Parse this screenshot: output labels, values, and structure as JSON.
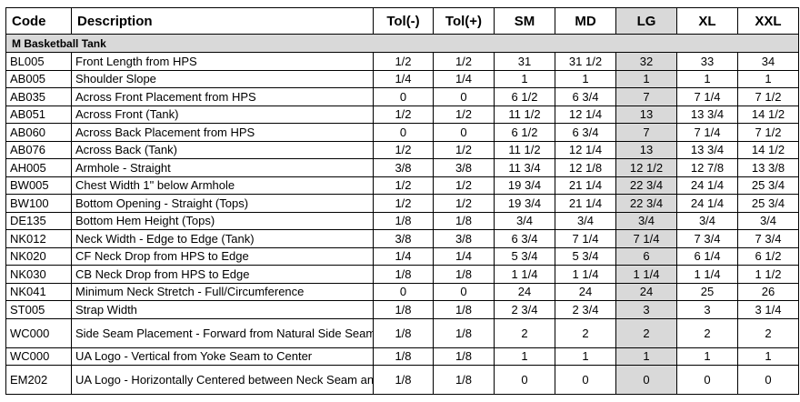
{
  "headers": {
    "code": "Code",
    "description": "Description",
    "tol_minus": "Tol(-)",
    "tol_plus": "Tol(+)",
    "sizes": [
      "SM",
      "MD",
      "LG",
      "XL",
      "XXL"
    ]
  },
  "section_title": "M Basketball Tank",
  "rows": [
    {
      "code": "BL005",
      "desc": "Front Length from HPS",
      "tm": "1/2",
      "tp": "1/2",
      "v": [
        "31",
        "31 1/2",
        "32",
        "33",
        "34"
      ]
    },
    {
      "code": "AB005",
      "desc": "Shoulder Slope",
      "tm": "1/4",
      "tp": "1/4",
      "v": [
        "1",
        "1",
        "1",
        "1",
        "1"
      ]
    },
    {
      "code": "AB035",
      "desc": "Across Front Placement from HPS",
      "tm": "0",
      "tp": "0",
      "v": [
        "6 1/2",
        "6 3/4",
        "7",
        "7 1/4",
        "7 1/2"
      ]
    },
    {
      "code": "AB051",
      "desc": "Across Front (Tank)",
      "tm": "1/2",
      "tp": "1/2",
      "v": [
        "11 1/2",
        "12 1/4",
        "13",
        "13 3/4",
        "14 1/2"
      ]
    },
    {
      "code": "AB060",
      "desc": "Across Back Placement from HPS",
      "tm": "0",
      "tp": "0",
      "v": [
        "6 1/2",
        "6 3/4",
        "7",
        "7 1/4",
        "7 1/2"
      ]
    },
    {
      "code": "AB076",
      "desc": "Across Back (Tank)",
      "tm": "1/2",
      "tp": "1/2",
      "v": [
        "11 1/2",
        "12 1/4",
        "13",
        "13 3/4",
        "14 1/2"
      ]
    },
    {
      "code": "AH005",
      "desc": "Armhole - Straight",
      "tm": "3/8",
      "tp": "3/8",
      "v": [
        "11 3/4",
        "12 1/8",
        "12 1/2",
        "12 7/8",
        "13 3/8"
      ]
    },
    {
      "code": "BW005",
      "desc": "Chest Width 1\" below Armhole",
      "tm": "1/2",
      "tp": "1/2",
      "v": [
        "19 3/4",
        "21 1/4",
        "22 3/4",
        "24 1/4",
        "25 3/4"
      ]
    },
    {
      "code": "BW100",
      "desc": "Bottom Opening - Straight (Tops)",
      "tm": "1/2",
      "tp": "1/2",
      "v": [
        "19 3/4",
        "21 1/4",
        "22 3/4",
        "24 1/4",
        "25 3/4"
      ]
    },
    {
      "code": "DE135",
      "desc": "Bottom Hem Height (Tops)",
      "tm": "1/8",
      "tp": "1/8",
      "v": [
        "3/4",
        "3/4",
        "3/4",
        "3/4",
        "3/4"
      ]
    },
    {
      "code": "NK012",
      "desc": "Neck Width - Edge to Edge (Tank)",
      "tm": "3/8",
      "tp": "3/8",
      "v": [
        "6 3/4",
        "7 1/4",
        "7 1/4",
        "7 3/4",
        "7 3/4"
      ]
    },
    {
      "code": "NK020",
      "desc": "CF Neck Drop from HPS to Edge",
      "tm": "1/4",
      "tp": "1/4",
      "v": [
        "5 3/4",
        "5 3/4",
        "6",
        "6 1/4",
        "6 1/2"
      ]
    },
    {
      "code": "NK030",
      "desc": "CB Neck Drop from HPS to Edge",
      "tm": "1/8",
      "tp": "1/8",
      "v": [
        "1 1/4",
        "1 1/4",
        "1 1/4",
        "1 1/4",
        "1 1/2"
      ]
    },
    {
      "code": "NK041",
      "desc": "Minimum Neck Stretch - Full/Circumference",
      "tm": "0",
      "tp": "0",
      "v": [
        "24",
        "24",
        "24",
        "25",
        "26"
      ]
    },
    {
      "code": "ST005",
      "desc": "Strap Width",
      "tm": "1/8",
      "tp": "1/8",
      "v": [
        "2 3/4",
        "2 3/4",
        "3",
        "3",
        "3 1/4"
      ]
    },
    {
      "code": "WC000",
      "desc": "Side Seam Placement - Forward from Natural Side Seam",
      "tm": "1/8",
      "tp": "1/8",
      "v": [
        "2",
        "2",
        "2",
        "2",
        "2"
      ]
    },
    {
      "code": "WC000",
      "desc": "UA Logo - Vertical from Yoke Seam to Center",
      "tm": "1/8",
      "tp": "1/8",
      "v": [
        "1",
        "1",
        "1",
        "1",
        "1"
      ]
    },
    {
      "code": "EM202",
      "desc": "UA Logo - Horizontally Centered between Neck Seam and Armhole",
      "tm": "1/8",
      "tp": "1/8",
      "v": [
        "0",
        "0",
        "0",
        "0",
        "0"
      ]
    }
  ],
  "colors": {
    "highlight": "#d9d9d9",
    "border": "#000000"
  }
}
